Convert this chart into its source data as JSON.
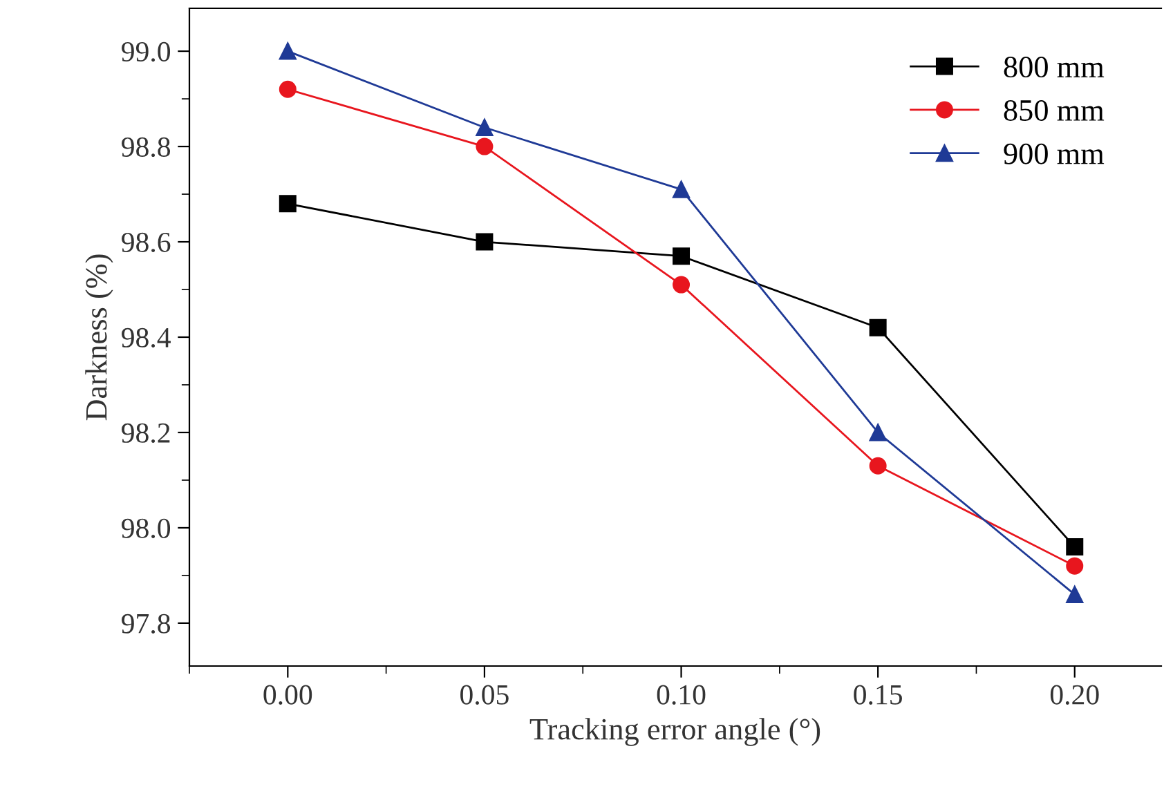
{
  "chart_data": {
    "type": "line",
    "xlabel": "Tracking error angle (°)",
    "ylabel": "Darkness (%)",
    "x": [
      0.0,
      0.05,
      0.1,
      0.15,
      0.2
    ],
    "series": [
      {
        "name": "800 mm",
        "color": "#000000",
        "marker": "square",
        "values": [
          98.68,
          98.6,
          98.57,
          98.42,
          97.96
        ]
      },
      {
        "name": "850 mm",
        "color": "#e8161e",
        "marker": "circle",
        "values": [
          98.92,
          98.8,
          98.51,
          98.13,
          97.92
        ]
      },
      {
        "name": "900 mm",
        "color": "#1f3a96",
        "marker": "triangle",
        "values": [
          99.0,
          98.84,
          98.71,
          98.2,
          97.86
        ]
      }
    ],
    "xlim": [
      -0.025,
      0.222
    ],
    "ylim": [
      97.71,
      99.09
    ],
    "xticks": [
      {
        "value": 0.0,
        "label": "0.00"
      },
      {
        "value": 0.05,
        "label": "0.05"
      },
      {
        "value": 0.1,
        "label": "0.10"
      },
      {
        "value": 0.15,
        "label": "0.15"
      },
      {
        "value": 0.2,
        "label": "0.20"
      }
    ],
    "yticks": [
      {
        "value": 97.8,
        "label": "97.8"
      },
      {
        "value": 98.0,
        "label": "98.0"
      },
      {
        "value": 98.2,
        "label": "98.2"
      },
      {
        "value": 98.4,
        "label": "98.4"
      },
      {
        "value": 98.6,
        "label": "98.6"
      },
      {
        "value": 98.8,
        "label": "98.8"
      },
      {
        "value": 99.0,
        "label": "99.0"
      }
    ],
    "grid": false,
    "legend": "top right",
    "line_style": "solid"
  }
}
